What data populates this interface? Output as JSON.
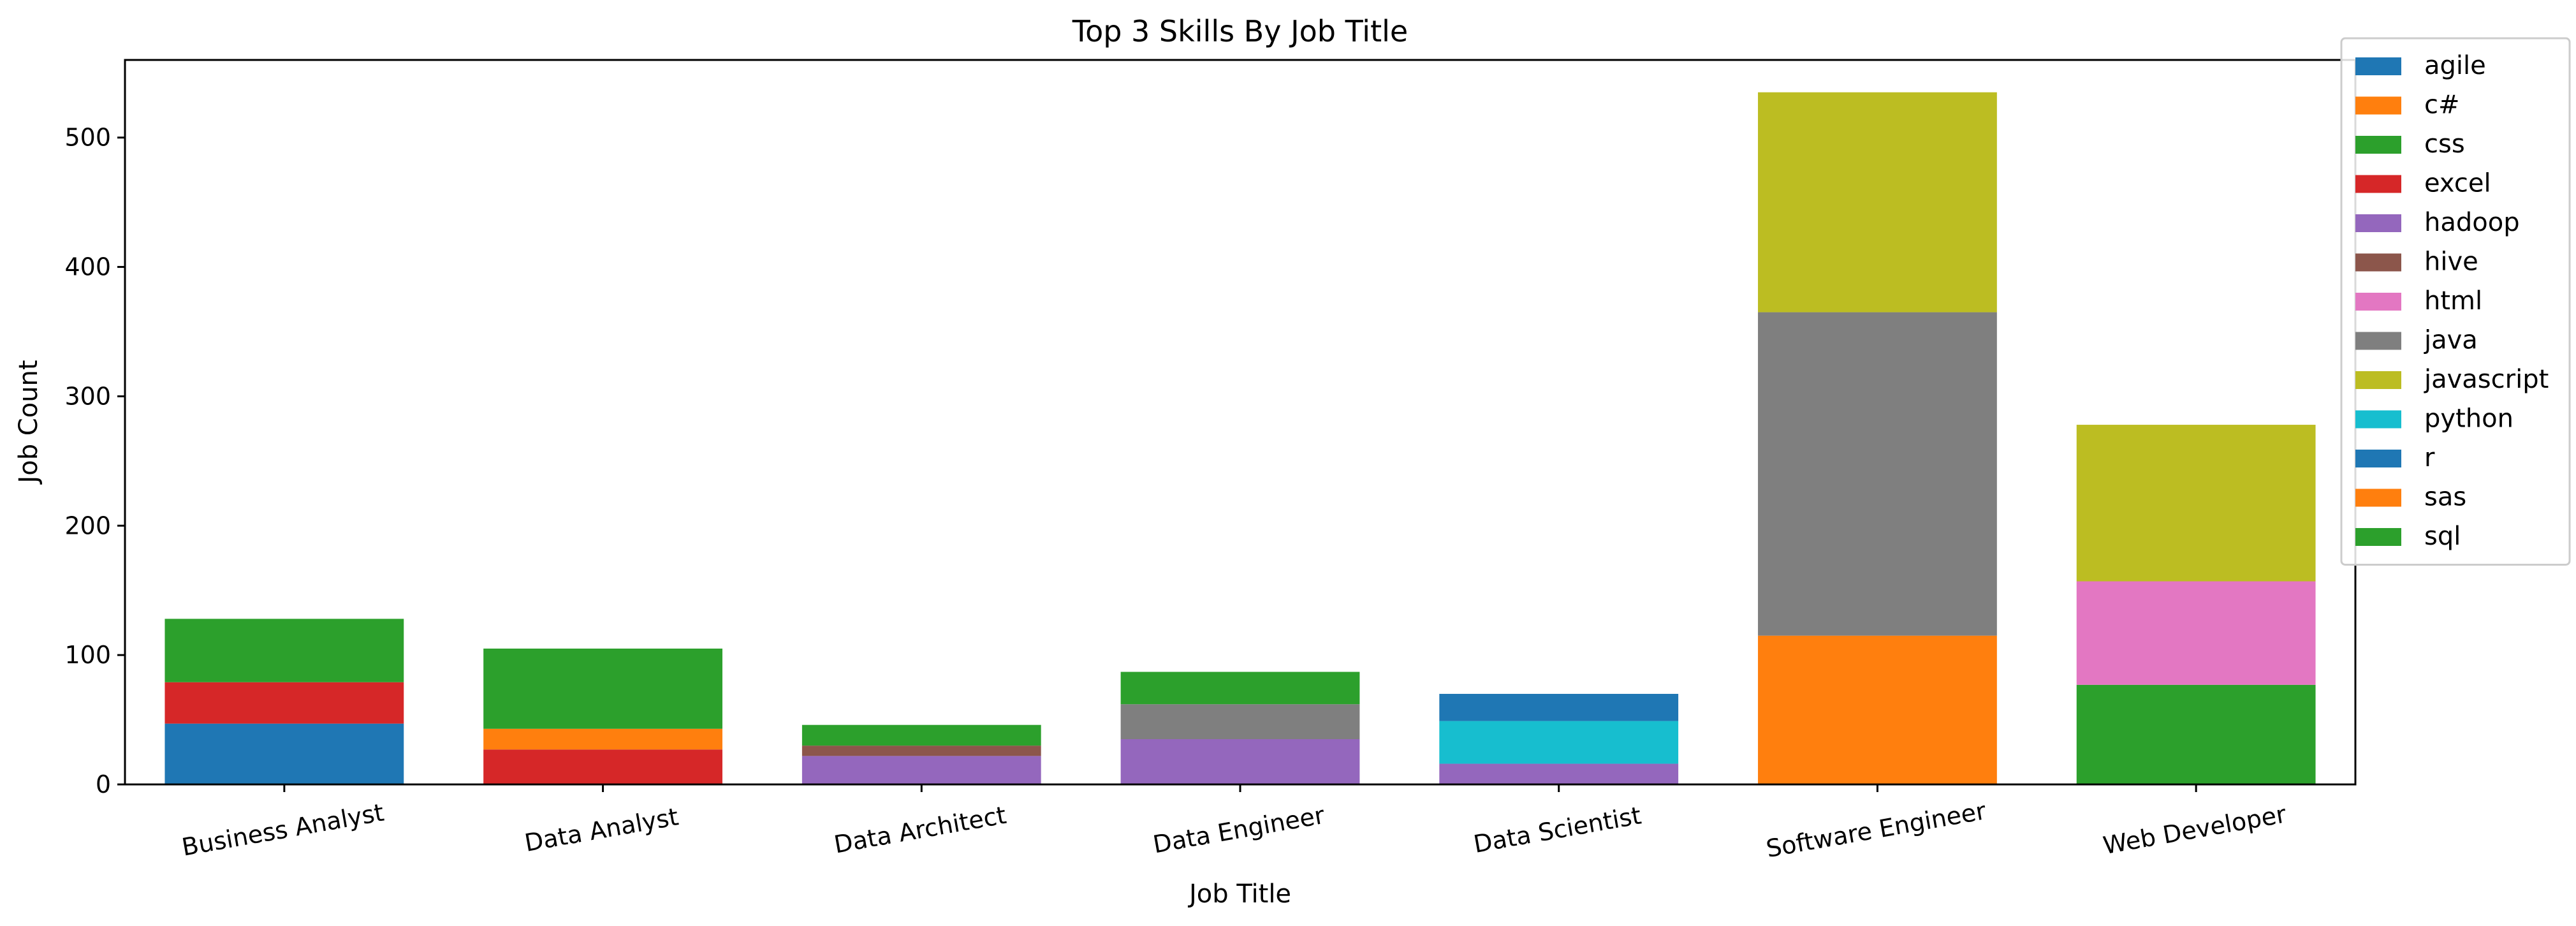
{
  "chart_data": {
    "type": "bar",
    "stacked": true,
    "title": "Top 3 Skills By Job Title",
    "xlabel": "Job Title",
    "ylabel": "Job Count",
    "ylim": [
      0,
      560
    ],
    "yticks": [
      0,
      100,
      200,
      300,
      400,
      500
    ],
    "grid": false,
    "legend_position": "top-right",
    "categories": [
      "Business Analyst",
      "Data Analyst",
      "Data Architect",
      "Data Engineer",
      "Data Scientist",
      "Software Engineer",
      "Web Developer"
    ],
    "series": [
      {
        "name": "agile",
        "color": "#1f77b4",
        "values": [
          47,
          0,
          0,
          0,
          0,
          0,
          0
        ]
      },
      {
        "name": "c#",
        "color": "#ff7f0e",
        "values": [
          0,
          0,
          0,
          0,
          0,
          115,
          0
        ]
      },
      {
        "name": "css",
        "color": "#2ca02c",
        "values": [
          0,
          0,
          0,
          0,
          0,
          0,
          77
        ]
      },
      {
        "name": "excel",
        "color": "#d62728",
        "values": [
          32,
          27,
          0,
          0,
          0,
          0,
          0
        ]
      },
      {
        "name": "hadoop",
        "color": "#9467bd",
        "values": [
          0,
          0,
          22,
          35,
          16,
          0,
          0
        ]
      },
      {
        "name": "hive",
        "color": "#8c564b",
        "values": [
          0,
          0,
          8,
          0,
          0,
          0,
          0
        ]
      },
      {
        "name": "html",
        "color": "#e377c2",
        "values": [
          0,
          0,
          0,
          0,
          0,
          0,
          80
        ]
      },
      {
        "name": "java",
        "color": "#7f7f7f",
        "values": [
          0,
          0,
          0,
          27,
          0,
          250,
          0
        ]
      },
      {
        "name": "javascript",
        "color": "#bcbd22",
        "values": [
          0,
          0,
          0,
          0,
          0,
          170,
          121
        ]
      },
      {
        "name": "python",
        "color": "#17becf",
        "values": [
          0,
          0,
          0,
          0,
          33,
          0,
          0
        ]
      },
      {
        "name": "r",
        "color": "#1f77b4",
        "values": [
          0,
          0,
          0,
          0,
          21,
          0,
          0
        ]
      },
      {
        "name": "sas",
        "color": "#ff7f0e",
        "values": [
          0,
          16,
          0,
          0,
          0,
          0,
          0
        ]
      },
      {
        "name": "sql",
        "color": "#2ca02c",
        "values": [
          49,
          62,
          16,
          25,
          0,
          0,
          0
        ]
      }
    ]
  }
}
